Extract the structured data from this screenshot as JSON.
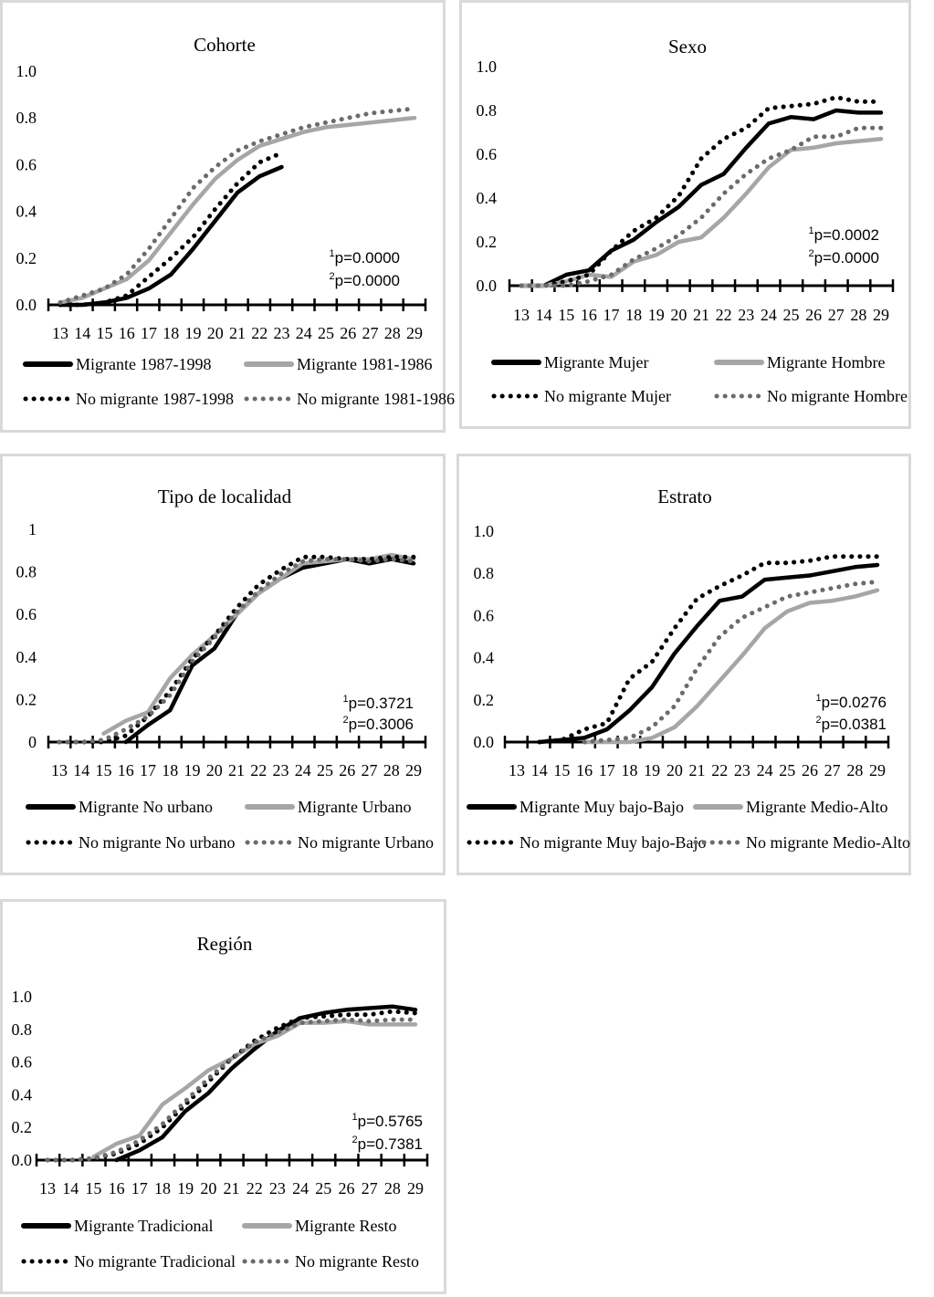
{
  "chart_data": [
    {
      "id": "cohorte",
      "type": "line",
      "title": "Cohorte",
      "xlabel": "",
      "ylabel": "",
      "x": [
        13,
        14,
        15,
        16,
        17,
        18,
        19,
        20,
        21,
        22,
        23,
        24,
        25,
        26,
        27,
        28,
        29
      ],
      "x_tick_labels": [
        "13",
        "14",
        "15",
        "16",
        "17",
        "18",
        "19",
        "20",
        "21",
        "22",
        "23",
        "24",
        "25",
        "26",
        "27",
        "28",
        "29"
      ],
      "y_tick_labels": [
        "0.0",
        "0.2",
        "0.4",
        "0.6",
        "0.8",
        "1.0"
      ],
      "y_ticks": [
        0,
        0.2,
        0.4,
        0.6,
        0.8,
        1.0
      ],
      "ylim": [
        0,
        1.0
      ],
      "grid": false,
      "annotations": [
        {
          "sup": "1",
          "text": "p=0.0000"
        },
        {
          "sup": "2",
          "text": "p=0.0000"
        }
      ],
      "legend_position": "bottom",
      "series": [
        {
          "name": "Migrante 1987-1998",
          "style": "solid",
          "color": "#000000",
          "values": [
            0.0,
            0.0,
            0.01,
            0.03,
            0.07,
            0.13,
            0.24,
            0.36,
            0.48,
            0.55,
            0.59,
            null,
            null,
            null,
            null,
            null,
            null
          ]
        },
        {
          "name": "Migrante 1981-1986",
          "style": "solid",
          "color": "#a6a6a6",
          "values": [
            0.01,
            0.03,
            0.07,
            0.11,
            0.19,
            0.31,
            0.43,
            0.54,
            0.62,
            0.68,
            0.71,
            0.74,
            0.76,
            0.77,
            0.78,
            0.79,
            0.8
          ]
        },
        {
          "name": "No migrante 1987-1998",
          "style": "dotted",
          "color": "#000000",
          "values": [
            0.0,
            0.0,
            0.01,
            0.04,
            0.12,
            0.2,
            0.29,
            0.41,
            0.52,
            0.61,
            0.65,
            null,
            null,
            null,
            null,
            null,
            null
          ]
        },
        {
          "name": "No migrante 1981-1986",
          "style": "dotted",
          "color": "#6b6b6b",
          "values": [
            0.01,
            0.04,
            0.07,
            0.13,
            0.24,
            0.37,
            0.5,
            0.59,
            0.66,
            0.7,
            0.73,
            0.76,
            0.78,
            0.8,
            0.82,
            0.83,
            0.84
          ]
        }
      ]
    },
    {
      "id": "sexo",
      "type": "line",
      "title": "Sexo",
      "xlabel": "",
      "ylabel": "",
      "x": [
        13,
        14,
        15,
        16,
        17,
        18,
        19,
        20,
        21,
        22,
        23,
        24,
        25,
        26,
        27,
        28,
        29
      ],
      "x_tick_labels": [
        "13",
        "14",
        "15",
        "16",
        "17",
        "18",
        "19",
        "20",
        "21",
        "22",
        "23",
        "24",
        "25",
        "26",
        "27",
        "28",
        "29"
      ],
      "y_tick_labels": [
        "0.0",
        "0.2",
        "0.4",
        "0.6",
        "0.8",
        "1.0"
      ],
      "y_ticks": [
        0,
        0.2,
        0.4,
        0.6,
        0.8,
        1.0
      ],
      "ylim": [
        0,
        1.0
      ],
      "grid": false,
      "annotations": [
        {
          "sup": "1",
          "text": "p=0.0002"
        },
        {
          "sup": "2",
          "text": "p=0.0000"
        }
      ],
      "legend_position": "bottom",
      "series": [
        {
          "name": "Migrante Mujer",
          "style": "solid",
          "color": "#000000",
          "values": [
            0.0,
            0.0,
            0.05,
            0.07,
            0.16,
            0.21,
            0.29,
            0.36,
            0.46,
            0.51,
            0.63,
            0.74,
            0.77,
            0.76,
            0.8,
            0.79,
            0.79
          ]
        },
        {
          "name": "Migrante Hombre",
          "style": "solid",
          "color": "#a6a6a6",
          "values": [
            0.0,
            0.0,
            0.02,
            0.05,
            0.04,
            0.11,
            0.14,
            0.2,
            0.22,
            0.31,
            0.42,
            0.54,
            0.62,
            0.63,
            0.65,
            0.66,
            0.67
          ]
        },
        {
          "name": "No migrante Mujer",
          "style": "dotted",
          "color": "#000000",
          "values": [
            0.0,
            0.0,
            0.02,
            0.05,
            0.16,
            0.25,
            0.31,
            0.41,
            0.58,
            0.67,
            0.72,
            0.81,
            0.82,
            0.83,
            0.86,
            0.84,
            0.84
          ]
        },
        {
          "name": "No migrante Hombre",
          "style": "dotted",
          "color": "#6b6b6b",
          "values": [
            0.0,
            0.0,
            0.0,
            0.02,
            0.05,
            0.12,
            0.17,
            0.23,
            0.31,
            0.42,
            0.51,
            0.58,
            0.62,
            0.68,
            0.68,
            0.72,
            0.72
          ]
        }
      ]
    },
    {
      "id": "tipo-localidad",
      "type": "line",
      "title": "Tipo de localidad",
      "xlabel": "",
      "ylabel": "",
      "x": [
        13,
        14,
        15,
        16,
        17,
        18,
        19,
        20,
        21,
        22,
        23,
        24,
        25,
        26,
        27,
        28,
        29
      ],
      "x_tick_labels": [
        "13",
        "14",
        "15",
        "16",
        "17",
        "18",
        "19",
        "20",
        "21",
        "22",
        "23",
        "24",
        "25",
        "26",
        "27",
        "28",
        "29"
      ],
      "y_tick_labels": [
        "0",
        "0.2",
        "0.4",
        "0.6",
        "0.8",
        "1"
      ],
      "y_ticks": [
        0,
        0.2,
        0.4,
        0.6,
        0.8,
        1.0
      ],
      "ylim": [
        0,
        1.0
      ],
      "grid": false,
      "annotations": [
        {
          "sup": "1",
          "text": "p=0.3721"
        },
        {
          "sup": "2",
          "text": "p=0.3006"
        }
      ],
      "legend_position": "bottom",
      "series": [
        {
          "name": "Migrante No urbano",
          "style": "solid",
          "color": "#000000",
          "values": [
            null,
            null,
            null,
            0.0,
            0.08,
            0.15,
            0.36,
            0.44,
            0.6,
            0.7,
            0.77,
            0.82,
            0.84,
            0.86,
            0.84,
            0.86,
            0.84
          ]
        },
        {
          "name": "Migrante Urbano",
          "style": "solid",
          "color": "#a6a6a6",
          "values": [
            null,
            null,
            0.04,
            0.1,
            0.14,
            0.3,
            0.41,
            0.5,
            0.6,
            0.7,
            0.77,
            0.84,
            0.85,
            0.86,
            0.86,
            0.88,
            0.86
          ]
        },
        {
          "name": "No migrante No urbano",
          "style": "dotted",
          "color": "#000000",
          "values": [
            0.0,
            0.0,
            0.0,
            0.03,
            0.12,
            0.24,
            0.39,
            0.5,
            0.63,
            0.74,
            0.81,
            0.87,
            0.87,
            0.86,
            0.86,
            0.87,
            0.87
          ]
        },
        {
          "name": "No migrante Urbano",
          "style": "dotted",
          "color": "#6b6b6b",
          "values": [
            0.0,
            0.0,
            0.01,
            0.06,
            0.12,
            0.22,
            0.38,
            0.49,
            0.61,
            0.71,
            0.79,
            0.85,
            0.86,
            0.86,
            0.85,
            0.86,
            0.85
          ]
        }
      ]
    },
    {
      "id": "estrato",
      "type": "line",
      "title": "Estrato",
      "xlabel": "",
      "ylabel": "",
      "x": [
        13,
        14,
        15,
        16,
        17,
        18,
        19,
        20,
        21,
        22,
        23,
        24,
        25,
        26,
        27,
        28,
        29
      ],
      "x_tick_labels": [
        "13",
        "14",
        "15",
        "16",
        "17",
        "18",
        "19",
        "20",
        "21",
        "22",
        "23",
        "24",
        "25",
        "26",
        "27",
        "28",
        "29"
      ],
      "y_tick_labels": [
        "0.0",
        "0.2",
        "0.4",
        "0.6",
        "0.8",
        "1.0"
      ],
      "y_ticks": [
        0,
        0.2,
        0.4,
        0.6,
        0.8,
        1.0
      ],
      "ylim": [
        0,
        1.0
      ],
      "grid": false,
      "annotations": [
        {
          "sup": "1",
          "text": "p=0.0276"
        },
        {
          "sup": "2",
          "text": "p=0.0381"
        }
      ],
      "legend_position": "bottom",
      "series": [
        {
          "name": "Migrante Muy bajo-Bajo",
          "style": "solid",
          "color": "#000000",
          "values": [
            null,
            0.0,
            0.01,
            0.02,
            0.06,
            0.15,
            0.26,
            0.42,
            0.55,
            0.67,
            0.69,
            0.77,
            0.78,
            0.79,
            0.81,
            0.83,
            0.84
          ]
        },
        {
          "name": "Migrante Medio-Alto",
          "style": "solid",
          "color": "#a6a6a6",
          "values": [
            null,
            null,
            null,
            0.0,
            0.0,
            0.0,
            0.02,
            0.07,
            0.17,
            0.29,
            0.41,
            0.54,
            0.62,
            0.66,
            0.67,
            0.69,
            0.72
          ]
        },
        {
          "name": "No migrante Muy bajo-Bajo",
          "style": "dotted",
          "color": "#000000",
          "values": [
            null,
            0.0,
            0.01,
            0.06,
            0.09,
            0.3,
            0.38,
            0.54,
            0.68,
            0.74,
            0.79,
            0.85,
            0.85,
            0.86,
            0.88,
            0.88,
            0.88
          ]
        },
        {
          "name": "No migrante Medio-Alto",
          "style": "dotted",
          "color": "#6b6b6b",
          "values": [
            null,
            null,
            null,
            0.0,
            0.01,
            0.02,
            0.07,
            0.17,
            0.35,
            0.5,
            0.59,
            0.64,
            0.69,
            0.71,
            0.73,
            0.75,
            0.76
          ]
        }
      ]
    },
    {
      "id": "region",
      "type": "line",
      "title": "Región",
      "xlabel": "",
      "ylabel": "",
      "x": [
        13,
        14,
        15,
        16,
        17,
        18,
        19,
        20,
        21,
        22,
        23,
        24,
        25,
        26,
        27,
        28,
        29
      ],
      "x_tick_labels": [
        "13",
        "14",
        "15",
        "16",
        "17",
        "18",
        "19",
        "20",
        "21",
        "22",
        "23",
        "24",
        "25",
        "26",
        "27",
        "28",
        "29"
      ],
      "y_tick_labels": [
        "0.0",
        "0.2",
        "0.4",
        "0.6",
        "0.8",
        "1.0"
      ],
      "y_ticks": [
        0,
        0.2,
        0.4,
        0.6,
        0.8,
        1.0
      ],
      "ylim": [
        0,
        1.0
      ],
      "grid": false,
      "annotations": [
        {
          "sup": "1",
          "text": "p=0.5765"
        },
        {
          "sup": "2",
          "text": "p=0.7381"
        }
      ],
      "legend_position": "bottom",
      "series": [
        {
          "name": "Migrante Tradicional",
          "style": "solid",
          "color": "#000000",
          "values": [
            null,
            null,
            null,
            0.0,
            0.06,
            0.14,
            0.3,
            0.41,
            0.56,
            0.68,
            0.79,
            0.87,
            0.9,
            0.92,
            0.93,
            0.94,
            0.92
          ]
        },
        {
          "name": "Migrante Resto",
          "style": "solid",
          "color": "#a6a6a6",
          "values": [
            null,
            null,
            0.02,
            0.1,
            0.15,
            0.34,
            0.44,
            0.55,
            0.62,
            0.71,
            0.76,
            0.84,
            0.84,
            0.85,
            0.83,
            0.83,
            0.83
          ]
        },
        {
          "name": "No migrante Tradicional",
          "style": "dotted",
          "color": "#000000",
          "values": [
            0.0,
            0.0,
            0.01,
            0.04,
            0.1,
            0.2,
            0.34,
            0.48,
            0.62,
            0.73,
            0.81,
            0.87,
            0.88,
            0.89,
            0.89,
            0.91,
            0.9
          ]
        },
        {
          "name": "No migrante Resto",
          "style": "dotted",
          "color": "#6b6b6b",
          "values": [
            0.0,
            0.0,
            0.01,
            0.05,
            0.12,
            0.22,
            0.36,
            0.5,
            0.62,
            0.72,
            0.78,
            0.84,
            0.85,
            0.86,
            0.85,
            0.86,
            0.86
          ]
        }
      ]
    }
  ]
}
